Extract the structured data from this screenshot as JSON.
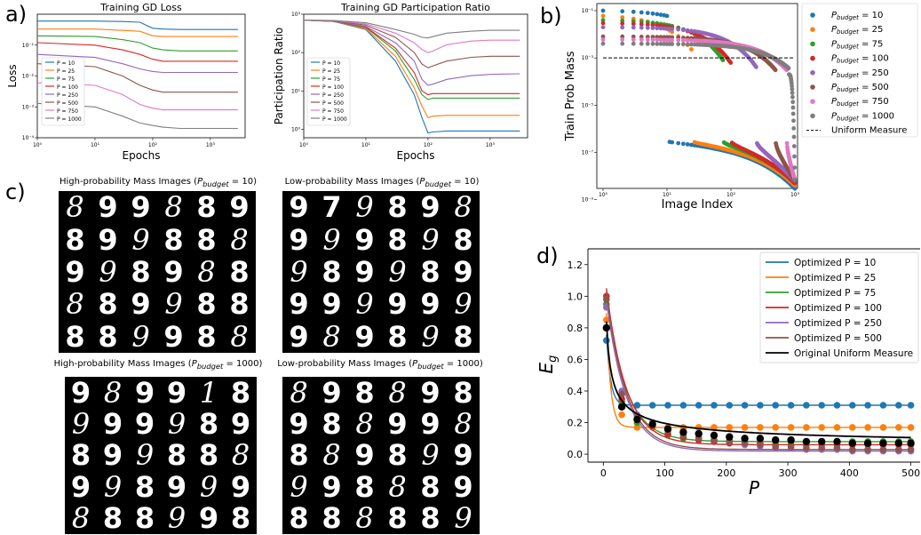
{
  "panel_labels": {
    "a": "a)",
    "b": "b)",
    "c": "c)",
    "d": "d)"
  },
  "colors": {
    "blue": "#1f77b4",
    "orange": "#ff7f0e",
    "green": "#2ca02c",
    "red": "#d62728",
    "purple": "#9467bd",
    "brown": "#8c564b",
    "pink": "#e377c2",
    "gray": "#7f7f7f",
    "black": "#000000"
  },
  "chart_data": [
    {
      "id": "a_loss",
      "type": "line",
      "title": "Training GD Loss",
      "xlabel": "Epochs",
      "ylabel": "Loss",
      "xscale": "log",
      "yscale": "log",
      "xlim": [
        1,
        4000
      ],
      "ylim": [
        0.0001,
        1
      ],
      "xtick_labels": [
        "10⁰",
        "10¹",
        "10²",
        "10³"
      ],
      "ytick_labels": [
        "10⁻¹",
        "10⁻²",
        "10⁻³",
        "10⁻⁴"
      ],
      "legend_position": "bottom-left",
      "x": [
        1,
        10,
        30,
        60,
        100,
        150,
        300,
        1000,
        3000
      ],
      "series": [
        {
          "name": "P = 10",
          "color": "#1f77b4",
          "values": [
            0.6,
            0.6,
            0.58,
            0.55,
            0.35,
            0.33,
            0.32,
            0.32,
            0.32
          ]
        },
        {
          "name": "P = 25",
          "color": "#ff7f0e",
          "values": [
            0.33,
            0.33,
            0.3,
            0.28,
            0.2,
            0.19,
            0.19,
            0.19,
            0.19
          ]
        },
        {
          "name": "P = 75",
          "color": "#2ca02c",
          "values": [
            0.2,
            0.19,
            0.15,
            0.12,
            0.08,
            0.07,
            0.065,
            0.065,
            0.065
          ]
        },
        {
          "name": "P = 100",
          "color": "#d62728",
          "values": [
            0.12,
            0.1,
            0.07,
            0.05,
            0.035,
            0.03,
            0.03,
            0.03,
            0.03
          ]
        },
        {
          "name": "P = 250",
          "color": "#9467bd",
          "values": [
            0.05,
            0.04,
            0.025,
            0.017,
            0.014,
            0.013,
            0.013,
            0.013,
            0.013
          ]
        },
        {
          "name": "P = 500",
          "color": "#8c564b",
          "values": [
            0.025,
            0.02,
            0.01,
            0.005,
            0.0035,
            0.003,
            0.003,
            0.003,
            0.003
          ]
        },
        {
          "name": "P = 750",
          "color": "#e377c2",
          "values": [
            0.006,
            0.005,
            0.0025,
            0.0012,
            0.0009,
            0.0008,
            0.0008,
            0.0008,
            0.0008
          ]
        },
        {
          "name": "P = 1000",
          "color": "#7f7f7f",
          "values": [
            0.0013,
            0.001,
            0.0005,
            0.0003,
            0.00025,
            0.00022,
            0.0002,
            0.0002,
            0.0002
          ]
        }
      ]
    },
    {
      "id": "a_pr",
      "type": "line",
      "title": "Training GD Participation Ratio",
      "xlabel": "Epochs",
      "ylabel": "Participation Ratio",
      "xscale": "log",
      "yscale": "log",
      "xlim": [
        1,
        4000
      ],
      "ylim": [
        0.6,
        1000
      ],
      "xtick_labels": [
        "10⁰",
        "10¹",
        "10²",
        "10³"
      ],
      "ytick_labels": [
        "10³",
        "10²",
        "10¹",
        "10⁰"
      ],
      "legend_position": "bottom-left",
      "x": [
        1,
        3,
        10,
        30,
        60,
        80,
        100,
        120,
        200,
        500,
        1000,
        3000
      ],
      "series": [
        {
          "name": "P = 10",
          "color": "#1f77b4",
          "values": [
            700,
            650,
            400,
            60,
            8,
            2,
            0.8,
            0.85,
            0.9,
            0.9,
            0.9,
            0.9
          ]
        },
        {
          "name": "P = 25",
          "color": "#ff7f0e",
          "values": [
            700,
            650,
            420,
            80,
            12,
            4,
            2,
            2.2,
            2.3,
            2.3,
            2.3,
            2.3
          ]
        },
        {
          "name": "P = 75",
          "color": "#2ca02c",
          "values": [
            700,
            650,
            450,
            110,
            20,
            8,
            6,
            6.5,
            6.5,
            6.5,
            6.5,
            6.5
          ]
        },
        {
          "name": "P = 100",
          "color": "#d62728",
          "values": [
            700,
            660,
            460,
            130,
            30,
            10,
            8,
            8.5,
            8.5,
            8.5,
            8.5,
            8.5
          ]
        },
        {
          "name": "P = 250",
          "color": "#9467bd",
          "values": [
            700,
            660,
            480,
            180,
            60,
            20,
            14,
            15,
            20,
            25,
            27,
            28
          ]
        },
        {
          "name": "P = 500",
          "color": "#8c564b",
          "values": [
            700,
            670,
            520,
            250,
            100,
            50,
            40,
            45,
            60,
            75,
            80,
            80
          ]
        },
        {
          "name": "P = 750",
          "color": "#e377c2",
          "values": [
            700,
            680,
            560,
            320,
            180,
            120,
            100,
            110,
            160,
            200,
            210,
            210
          ]
        },
        {
          "name": "P = 1000",
          "color": "#7f7f7f",
          "values": [
            700,
            690,
            600,
            400,
            300,
            250,
            240,
            260,
            320,
            360,
            380,
            380
          ]
        }
      ]
    },
    {
      "id": "b_mass",
      "type": "scatter",
      "xlabel": "Image Index",
      "ylabel": "Train Prob Mass",
      "xscale": "log",
      "yscale": "log",
      "xlim": [
        0.8,
        1100
      ],
      "ylim": [
        3e-09,
        0.2
      ],
      "xtick_labels": [
        "10⁰",
        "10¹",
        "10²",
        "10³"
      ],
      "ytick_labels": [
        "10⁻¹",
        "10⁻³",
        "10⁻⁵",
        "10⁻⁷",
        "10⁻⁹"
      ],
      "legend_position": "right",
      "uniform_measure": {
        "name": "Uniform Measure",
        "value": 0.001
      },
      "series": [
        {
          "name": "P_budget = 10",
          "color": "#1f77b4",
          "n": 1000,
          "top_count": 10,
          "top_high": 0.1,
          "top_low": 0.06,
          "tail_high": 3e-07,
          "tail_low": 3e-09
        },
        {
          "name": "P_budget = 25",
          "color": "#ff7f0e",
          "n": 1000,
          "top_count": 25,
          "top_high": 0.06,
          "top_low": 0.002,
          "tail_high": 3e-07,
          "tail_low": 4e-09
        },
        {
          "name": "P_budget = 75",
          "color": "#2ca02c",
          "n": 1000,
          "top_count": 75,
          "top_high": 0.04,
          "top_low": 0.0008,
          "tail_high": 3e-07,
          "tail_low": 5e-09
        },
        {
          "name": "P_budget = 100",
          "color": "#d62728",
          "n": 1000,
          "top_count": 100,
          "top_high": 0.03,
          "top_low": 0.0006,
          "tail_high": 3e-07,
          "tail_low": 5e-09
        },
        {
          "name": "P_budget = 250",
          "color": "#9467bd",
          "n": 1000,
          "top_count": 250,
          "top_high": 0.02,
          "top_low": 0.0004,
          "tail_high": 3e-07,
          "tail_low": 6e-09
        },
        {
          "name": "P_budget = 500",
          "color": "#8c564b",
          "n": 1000,
          "top_count": 500,
          "top_high": 0.008,
          "top_low": 0.0003,
          "tail_high": 3e-07,
          "tail_low": 6e-09
        },
        {
          "name": "P_budget = 750",
          "color": "#e377c2",
          "n": 1000,
          "top_count": 750,
          "top_high": 0.006,
          "top_low": 0.0003,
          "tail_high": 3e-07,
          "tail_low": 7e-09
        },
        {
          "name": "P_budget = 1000",
          "color": "#7f7f7f",
          "n": 1000,
          "top_count": 1000,
          "top_high": 0.004,
          "top_low": 0.0002,
          "tail_high": 3e-07,
          "tail_low": 7e-09
        }
      ]
    },
    {
      "id": "d_eg",
      "type": "line",
      "xlabel": "P",
      "ylabel": "E_g",
      "xlim": [
        -25,
        515
      ],
      "ylim": [
        -0.05,
        1.3
      ],
      "xticks": [
        0,
        100,
        200,
        300,
        400,
        500
      ],
      "yticks": [
        0.0,
        0.2,
        0.4,
        0.6,
        0.8,
        1.0,
        1.2
      ],
      "legend_position": "top-right",
      "marker_x": [
        5,
        30,
        55,
        80,
        105,
        130,
        155,
        180,
        205,
        230,
        255,
        280,
        305,
        330,
        355,
        380,
        405,
        430,
        455,
        480,
        500
      ],
      "series": [
        {
          "name": "Optimized P = 10",
          "color": "#1f77b4",
          "budget": 10,
          "marker_values": [
            0.72,
            0.31,
            0.31,
            0.31,
            0.31,
            0.31,
            0.31,
            0.31,
            0.31,
            0.31,
            0.31,
            0.31,
            0.31,
            0.31,
            0.31,
            0.31,
            0.31,
            0.31,
            0.31,
            0.31,
            0.31
          ]
        },
        {
          "name": "Optimized P = 25",
          "color": "#ff7f0e",
          "budget": 25,
          "marker_values": [
            0.85,
            0.25,
            0.17,
            0.17,
            0.17,
            0.17,
            0.17,
            0.17,
            0.17,
            0.17,
            0.17,
            0.17,
            0.17,
            0.17,
            0.17,
            0.17,
            0.17,
            0.17,
            0.17,
            0.17,
            0.17
          ]
        },
        {
          "name": "Optimized P = 75",
          "color": "#2ca02c",
          "budget": 75,
          "marker_values": [
            0.95,
            0.33,
            0.2,
            0.18,
            0.12,
            0.1,
            0.09,
            0.09,
            0.09,
            0.09,
            0.08,
            0.08,
            0.08,
            0.08,
            0.08,
            0.08,
            0.08,
            0.08,
            0.08,
            0.08,
            0.08
          ]
        },
        {
          "name": "Optimized P = 100",
          "color": "#d62728",
          "budget": 100,
          "marker_values": [
            1.0,
            0.35,
            0.22,
            0.18,
            0.13,
            0.11,
            0.09,
            0.08,
            0.07,
            0.07,
            0.07,
            0.06,
            0.06,
            0.06,
            0.06,
            0.06,
            0.06,
            0.06,
            0.06,
            0.06,
            0.06
          ]
        },
        {
          "name": "Optimized P = 250",
          "color": "#9467bd",
          "budget": 250,
          "marker_values": [
            0.93,
            0.4,
            0.25,
            0.2,
            0.16,
            0.13,
            0.11,
            0.09,
            0.08,
            0.06,
            0.05,
            0.04,
            0.04,
            0.03,
            0.03,
            0.03,
            0.02,
            0.02,
            0.02,
            0.02,
            0.02
          ]
        },
        {
          "name": "Optimized P = 500",
          "color": "#8c564b",
          "budget": 500,
          "marker_values": [
            0.98,
            0.38,
            0.24,
            0.19,
            0.15,
            0.12,
            0.1,
            0.09,
            0.08,
            0.07,
            0.06,
            0.05,
            0.05,
            0.04,
            0.04,
            0.04,
            0.03,
            0.03,
            0.03,
            0.03,
            0.03
          ]
        },
        {
          "name": "Original Uniform Measure",
          "color": "#000000",
          "budget": 0,
          "marker_values": [
            0.8,
            0.3,
            0.22,
            0.19,
            0.16,
            0.14,
            0.13,
            0.12,
            0.11,
            0.1,
            0.1,
            0.09,
            0.09,
            0.08,
            0.08,
            0.08,
            0.07,
            0.07,
            0.07,
            0.07,
            0.07
          ]
        }
      ]
    }
  ],
  "digit_grids": [
    {
      "title_prefix": "High-probability Mass Images (",
      "budget_value": "10",
      "title_suffix": ")",
      "rows": [
        [
          "8",
          "9",
          "9",
          "8",
          "8",
          "9"
        ],
        [
          "8",
          "9",
          "9",
          "8",
          "8",
          "8"
        ],
        [
          "9",
          "9",
          "8",
          "9",
          "8",
          "8"
        ],
        [
          "8",
          "8",
          "9",
          "9",
          "8",
          "8"
        ],
        [
          "8",
          "8",
          "9",
          "9",
          "8",
          "8"
        ]
      ]
    },
    {
      "title_prefix": "Low-probability Mass Images (",
      "budget_value": "10",
      "title_suffix": ")",
      "rows": [
        [
          "9",
          "7",
          "9",
          "8",
          "9",
          "8"
        ],
        [
          "9",
          "9",
          "9",
          "8",
          "9",
          "8"
        ],
        [
          "9",
          "8",
          "9",
          "9",
          "8",
          "9"
        ],
        [
          "9",
          "9",
          "9",
          "9",
          "9",
          "9"
        ],
        [
          "9",
          "8",
          "9",
          "8",
          "9",
          "8"
        ]
      ]
    },
    {
      "title_prefix": "High-probability Mass Images (",
      "budget_value": "1000",
      "title_suffix": ")",
      "rows": [
        [
          "9",
          "8",
          "9",
          "9",
          "1",
          "8"
        ],
        [
          "9",
          "9",
          "9",
          "9",
          "8",
          "9"
        ],
        [
          "8",
          "9",
          "9",
          "8",
          "8",
          "8"
        ],
        [
          "9",
          "9",
          "8",
          "9",
          "9",
          "9"
        ],
        [
          "8",
          "8",
          "8",
          "9",
          "9",
          "8"
        ]
      ]
    },
    {
      "title_prefix": "Low-probability Mass Images (",
      "budget_value": "1000",
      "title_suffix": ")",
      "rows": [
        [
          "8",
          "9",
          "8",
          "8",
          "9",
          "8"
        ],
        [
          "9",
          "8",
          "8",
          "9",
          "9",
          "8"
        ],
        [
          "8",
          "8",
          "9",
          "8",
          "9",
          "9"
        ],
        [
          "9",
          "9",
          "8",
          "8",
          "8",
          "9"
        ],
        [
          "8",
          "8",
          "8",
          "8",
          "8",
          "9"
        ]
      ]
    }
  ]
}
